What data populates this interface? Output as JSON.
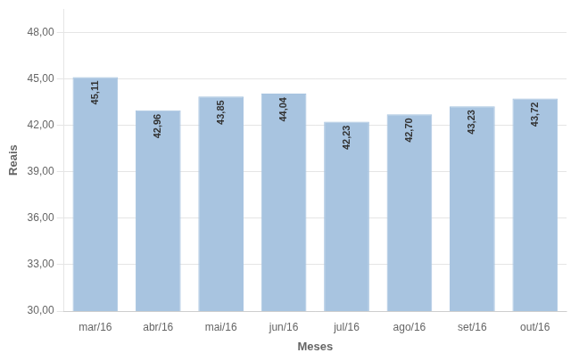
{
  "chart_data": {
    "type": "bar",
    "categories": [
      "mar/16",
      "abr/16",
      "mai/16",
      "jun/16",
      "jul/16",
      "ago/16",
      "set/16",
      "out/16"
    ],
    "values": [
      45.11,
      42.96,
      43.85,
      44.04,
      42.23,
      42.7,
      43.23,
      43.72
    ],
    "value_labels": [
      "45,11",
      "42,96",
      "43,85",
      "44,04",
      "42,23",
      "42,70",
      "43,23",
      "43,72"
    ],
    "data_labels": true,
    "color": "#a8c4e0",
    "x_label": "Meses",
    "y_label": "Reais",
    "ylim": [
      30.0,
      49.5
    ],
    "yticks": [
      {
        "value": 30.0,
        "label": "30,00"
      },
      {
        "value": 33.0,
        "label": "33,00"
      },
      {
        "value": 36.0,
        "label": "36,00"
      },
      {
        "value": 39.0,
        "label": "39,00"
      },
      {
        "value": 42.0,
        "label": "42,00"
      },
      {
        "value": 45.0,
        "label": "45,00"
      },
      {
        "value": 48.0,
        "label": "48,00"
      }
    ],
    "grid": true
  }
}
